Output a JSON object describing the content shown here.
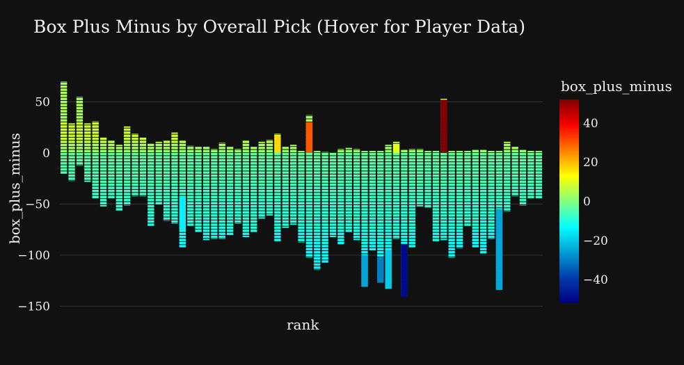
{
  "chart_data": {
    "type": "bar",
    "title": "Box Plus Minus by Overall Pick (Hover for Player Data)",
    "xlabel": "rank",
    "ylabel": "box_plus_minus",
    "ylim": [
      -150,
      70
    ],
    "y_ticks": [
      50,
      0,
      -50,
      -100,
      -150
    ],
    "barmode": "relative (stacked per rank)",
    "colorscale": "jet",
    "colorbar": {
      "title": "box_plus_minus",
      "range": [
        -52,
        52
      ],
      "ticks": [
        40,
        20,
        0,
        -20,
        -40
      ]
    },
    "ranks": [
      {
        "rank": 1,
        "pos": 70,
        "neg": -21,
        "hot": null
      },
      {
        "rank": 2,
        "pos": 29,
        "neg": -28,
        "hot": null
      },
      {
        "rank": 3,
        "pos": 55,
        "neg": -13,
        "hot": null
      },
      {
        "rank": 4,
        "pos": 29,
        "neg": -29,
        "hot": null
      },
      {
        "rank": 5,
        "pos": 31,
        "neg": -45,
        "hot": null
      },
      {
        "rank": 6,
        "pos": 15,
        "neg": -53,
        "hot": null
      },
      {
        "rank": 7,
        "pos": 12,
        "neg": -45,
        "hot": null
      },
      {
        "rank": 8,
        "pos": 8,
        "neg": -57,
        "hot": null
      },
      {
        "rank": 9,
        "pos": 26,
        "neg": -52,
        "hot": null
      },
      {
        "rank": 10,
        "pos": 19,
        "neg": -43,
        "hot": null
      },
      {
        "rank": 11,
        "pos": 15,
        "neg": -43,
        "hot": null
      },
      {
        "rank": 12,
        "pos": 9,
        "neg": -72,
        "hot": null
      },
      {
        "rank": 13,
        "pos": 11,
        "neg": -51,
        "hot": null
      },
      {
        "rank": 14,
        "pos": 12,
        "neg": -67,
        "hot": null
      },
      {
        "rank": 15,
        "pos": 20,
        "neg": -70,
        "hot": null
      },
      {
        "rank": 16,
        "pos": 12,
        "neg": -93,
        "hot": {
          "from": -43,
          "to": -75,
          "value": -15
        }
      },
      {
        "rank": 17,
        "pos": 7,
        "neg": -72,
        "hot": null
      },
      {
        "rank": 18,
        "pos": 6,
        "neg": -78,
        "hot": null
      },
      {
        "rank": 19,
        "pos": 6,
        "neg": -86,
        "hot": null
      },
      {
        "rank": 20,
        "pos": 4,
        "neg": -85,
        "hot": null
      },
      {
        "rank": 21,
        "pos": 10,
        "neg": -85,
        "hot": null
      },
      {
        "rank": 22,
        "pos": 6,
        "neg": -81,
        "hot": null
      },
      {
        "rank": 23,
        "pos": 4,
        "neg": -70,
        "hot": null
      },
      {
        "rank": 24,
        "pos": 12,
        "neg": -83,
        "hot": null
      },
      {
        "rank": 25,
        "pos": 6,
        "neg": -78,
        "hot": null
      },
      {
        "rank": 26,
        "pos": 11,
        "neg": -65,
        "hot": null
      },
      {
        "rank": 27,
        "pos": 13,
        "neg": -62,
        "hot": null
      },
      {
        "rank": 28,
        "pos": 19,
        "neg": -87,
        "hot": {
          "from": 0,
          "to": 17,
          "value": 17
        }
      },
      {
        "rank": 29,
        "pos": 6,
        "neg": -74,
        "hot": null
      },
      {
        "rank": 30,
        "pos": 8,
        "neg": -71,
        "hot": null
      },
      {
        "rank": 31,
        "pos": 2,
        "neg": -88,
        "hot": null
      },
      {
        "rank": 32,
        "pos": 37,
        "neg": -103,
        "hot": {
          "from": 0,
          "to": 30,
          "value": 30
        }
      },
      {
        "rank": 33,
        "pos": 2,
        "neg": -115,
        "hot": null
      },
      {
        "rank": 34,
        "pos": 1,
        "neg": -108,
        "hot": null
      },
      {
        "rank": 35,
        "pos": 0,
        "neg": -83,
        "hot": null
      },
      {
        "rank": 36,
        "pos": 4,
        "neg": -90,
        "hot": null
      },
      {
        "rank": 37,
        "pos": 5,
        "neg": -78,
        "hot": null
      },
      {
        "rank": 38,
        "pos": 4,
        "neg": -86,
        "hot": null
      },
      {
        "rank": 39,
        "pos": 2,
        "neg": -131,
        "hot": {
          "from": -100,
          "to": -131,
          "value": -25
        }
      },
      {
        "rank": 40,
        "pos": 2,
        "neg": -96,
        "hot": null
      },
      {
        "rank": 41,
        "pos": 2,
        "neg": -127,
        "hot": {
          "from": -102,
          "to": -127,
          "value": -30
        }
      },
      {
        "rank": 42,
        "pos": 8,
        "neg": -133,
        "hot": {
          "from": -95,
          "to": -133,
          "value": -20
        }
      },
      {
        "rank": 43,
        "pos": 11,
        "neg": -85,
        "hot": {
          "from": 0,
          "to": 9,
          "value": 10
        }
      },
      {
        "rank": 44,
        "pos": 3,
        "neg": -141,
        "hot": {
          "from": -89,
          "to": -141,
          "value": -50
        }
      },
      {
        "rank": 45,
        "pos": 4,
        "neg": -93,
        "hot": null
      },
      {
        "rank": 46,
        "pos": 4,
        "neg": -53,
        "hot": null
      },
      {
        "rank": 47,
        "pos": 2,
        "neg": -54,
        "hot": null
      },
      {
        "rank": 48,
        "pos": 2,
        "neg": -87,
        "hot": null
      },
      {
        "rank": 49,
        "pos": 53,
        "neg": -86,
        "hot": {
          "from": 0,
          "to": 52,
          "value": 52
        }
      },
      {
        "rank": 50,
        "pos": 2,
        "neg": -103,
        "hot": null
      },
      {
        "rank": 51,
        "pos": 2,
        "neg": -94,
        "hot": null
      },
      {
        "rank": 52,
        "pos": 2,
        "neg": -72,
        "hot": null
      },
      {
        "rank": 53,
        "pos": 3,
        "neg": -93,
        "hot": null
      },
      {
        "rank": 54,
        "pos": 3,
        "neg": -99,
        "hot": null
      },
      {
        "rank": 55,
        "pos": 2,
        "neg": -85,
        "hot": null
      },
      {
        "rank": 56,
        "pos": 2,
        "neg": -134,
        "hot": {
          "from": -55,
          "to": -134,
          "value": -25
        }
      },
      {
        "rank": 57,
        "pos": 11,
        "neg": -58,
        "hot": null
      },
      {
        "rank": 58,
        "pos": 6,
        "neg": -43,
        "hot": null
      },
      {
        "rank": 59,
        "pos": 3,
        "neg": -52,
        "hot": null
      },
      {
        "rank": 60,
        "pos": 2,
        "neg": -45,
        "hot": null
      },
      {
        "rank": 61,
        "pos": 2,
        "neg": -45,
        "hot": null
      }
    ]
  }
}
